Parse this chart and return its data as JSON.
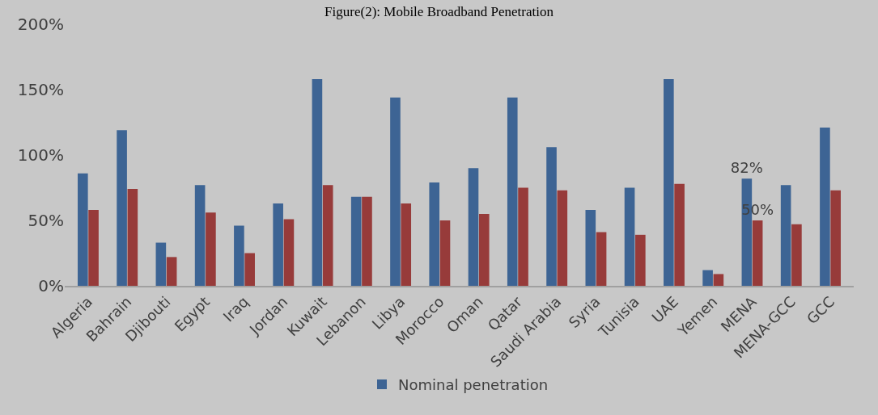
{
  "chart_data": {
    "type": "bar",
    "title": "Figure(2): Mobile Broadband Penetration",
    "categories": [
      "Algeria",
      "Bahrain",
      "Djibouti",
      "Egypt",
      "Iraq",
      "Jordan",
      "Kuwait",
      "Lebanon",
      "Libya",
      "Morocco",
      "Oman",
      "Qatar",
      "Saudi Arabia",
      "Syria",
      "Tunisia",
      "UAE",
      "Yemen",
      "MENA",
      "MENA-GCC",
      "GCC"
    ],
    "series": [
      {
        "name": "Nominal penetration",
        "color": "#3d6494",
        "values": [
          86,
          119,
          33,
          77,
          46,
          63,
          158,
          68,
          144,
          79,
          90,
          144,
          106,
          58,
          75,
          158,
          12,
          82,
          77,
          121
        ],
        "value_labels": [
          null,
          null,
          null,
          null,
          null,
          null,
          null,
          null,
          null,
          null,
          null,
          null,
          null,
          null,
          null,
          null,
          null,
          "82%",
          null,
          null
        ]
      },
      {
        "color": "#973b3a",
        "values": [
          58,
          74,
          22,
          56,
          25,
          51,
          77,
          68,
          63,
          50,
          55,
          75,
          73,
          41,
          39,
          78,
          9,
          50,
          47,
          73
        ],
        "value_labels": [
          null,
          null,
          null,
          null,
          null,
          null,
          null,
          null,
          null,
          null,
          null,
          null,
          null,
          null,
          null,
          null,
          null,
          "50%",
          null,
          null
        ]
      }
    ],
    "ylim": [
      0,
      200
    ],
    "yticks": [
      {
        "value": 0,
        "label": "0%"
      },
      {
        "value": 50,
        "label": "50%"
      },
      {
        "value": 100,
        "label": "100%"
      },
      {
        "value": 150,
        "label": "150%"
      },
      {
        "value": 200,
        "label": "200%"
      }
    ],
    "grid": false,
    "legend": "bottom"
  }
}
